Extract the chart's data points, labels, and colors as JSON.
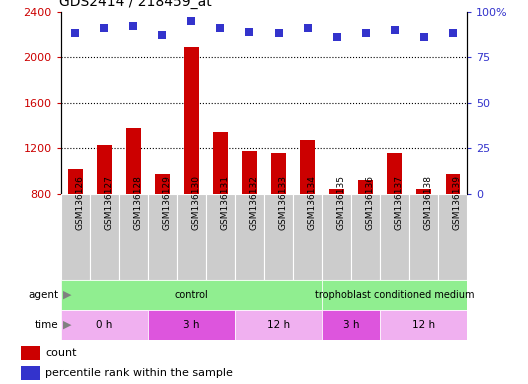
{
  "title": "GDS2414 / 218459_at",
  "samples": [
    "GSM136126",
    "GSM136127",
    "GSM136128",
    "GSM136129",
    "GSM136130",
    "GSM136131",
    "GSM136132",
    "GSM136133",
    "GSM136134",
    "GSM136135",
    "GSM136136",
    "GSM136137",
    "GSM136138",
    "GSM136139"
  ],
  "counts": [
    1020,
    1230,
    1380,
    970,
    2090,
    1340,
    1175,
    1160,
    1270,
    840,
    920,
    1155,
    840,
    970
  ],
  "percentile_ranks": [
    88,
    91,
    92,
    87,
    95,
    91,
    89,
    88,
    91,
    86,
    88,
    90,
    86,
    88
  ],
  "bar_color": "#cc0000",
  "dot_color": "#3333cc",
  "ylim_left": [
    800,
    2400
  ],
  "ylim_right": [
    0,
    100
  ],
  "yticks_left": [
    800,
    1200,
    1600,
    2000,
    2400
  ],
  "yticks_right": [
    0,
    25,
    50,
    75,
    100
  ],
  "ytick_right_labels": [
    "0",
    "25",
    "50",
    "75",
    "100%"
  ],
  "grid_yticks": [
    1200,
    1600,
    2000
  ],
  "bar_width": 0.5,
  "agent_groups": [
    {
      "label": "control",
      "start": 0,
      "end": 9,
      "color": "#90ee90"
    },
    {
      "label": "trophoblast conditioned medium",
      "start": 9,
      "end": 14,
      "color": "#90ee90"
    }
  ],
  "time_groups": [
    {
      "label": "0 h",
      "start": 0,
      "end": 3,
      "color": "#f0b0f0"
    },
    {
      "label": "3 h",
      "start": 3,
      "end": 6,
      "color": "#dd55dd"
    },
    {
      "label": "12 h",
      "start": 6,
      "end": 9,
      "color": "#f0b0f0"
    },
    {
      "label": "3 h",
      "start": 9,
      "end": 11,
      "color": "#dd55dd"
    },
    {
      "label": "12 h",
      "start": 11,
      "end": 14,
      "color": "#f0b0f0"
    }
  ],
  "xtick_bg_color": "#cccccc",
  "bg_color": "#ffffff",
  "tick_color_left": "#cc0000",
  "tick_color_right": "#3333cc",
  "legend_items": [
    {
      "label": "count",
      "color": "#cc0000",
      "marker": "s"
    },
    {
      "label": "percentile rank within the sample",
      "color": "#3333cc",
      "marker": "s"
    }
  ]
}
